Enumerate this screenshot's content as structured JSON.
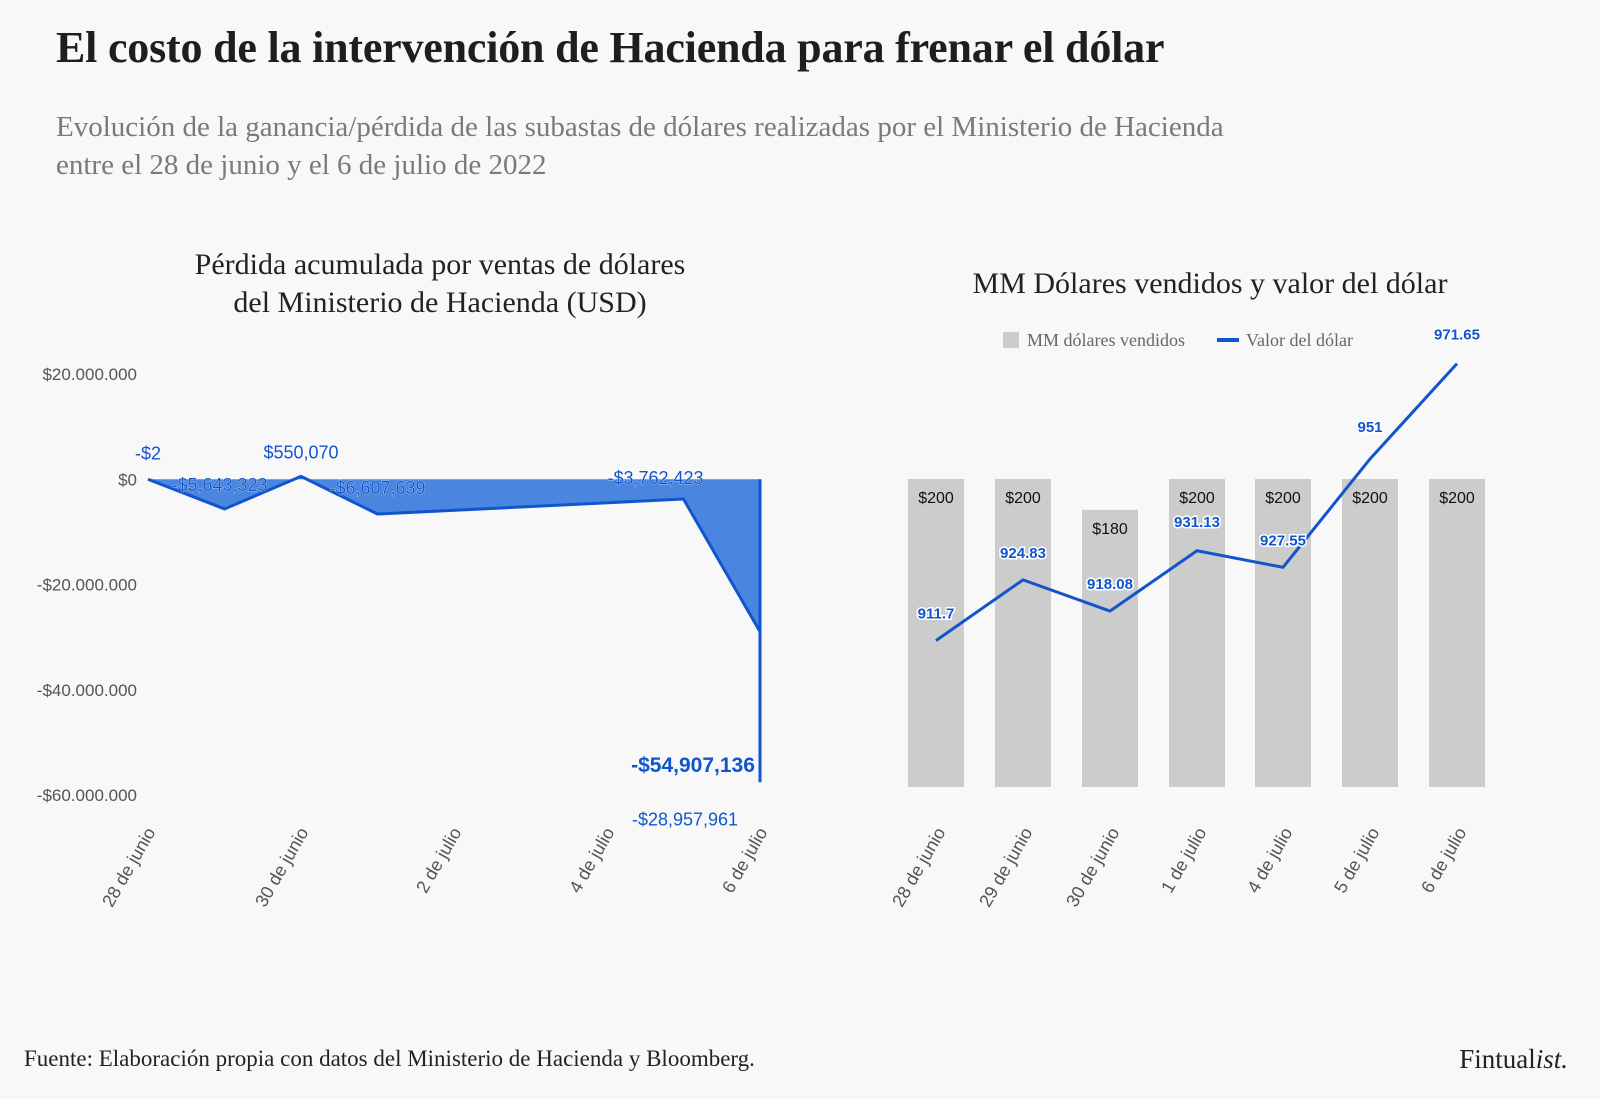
{
  "header": {
    "title": "El costo de la intervención de Hacienda para frenar el dólar",
    "subtitle_line1": "Evolución de la ganancia/pérdida de las subastas de dólares realizadas por el Ministerio de Hacienda",
    "subtitle_line2": "entre el 28 de junio y el 6 de julio de 2022"
  },
  "footer": {
    "source": "Fuente: Elaboración propia con datos del Ministerio de Hacienda y Bloomberg.",
    "brand_main": "Fintual",
    "brand_italic": "ist."
  },
  "colors": {
    "area_fill": "#4a86e0",
    "line": "#1155cc",
    "bar": "#cccccc",
    "axis_text": "#555555"
  },
  "chart_data": [
    {
      "type": "area",
      "title_line1": "Pérdida acumulada por ventas de dólares",
      "title_line2": "del Ministerio de Hacienda (USD)",
      "x_tick_labels": [
        "28 de junio",
        "30 de junio",
        "2 de julio",
        "4 de julio",
        "6 de julio"
      ],
      "ylim": [
        -60000000,
        20000000
      ],
      "y_ticks": [
        20000000,
        0,
        -20000000,
        -40000000,
        -60000000
      ],
      "y_tick_labels": [
        "$20.000.000",
        "$0",
        "-$20.000.000",
        "-$40.000.000",
        "-$60.000.000"
      ],
      "series": [
        {
          "name": "Pérdida acumulada",
          "points": [
            {
              "date": "28 de junio",
              "day": 0,
              "value": -2,
              "label": "-$2"
            },
            {
              "date": "29 de junio",
              "day": 1,
              "value": -5643323,
              "label": "-$5,643,323"
            },
            {
              "date": "30 de junio",
              "day": 2,
              "value": 550070,
              "label": "$550,070"
            },
            {
              "date": "1 de julio",
              "day": 3,
              "value": -6607639,
              "label": "-$6,607,639"
            },
            {
              "date": "5 de julio",
              "day": 7,
              "value": -3762423,
              "label": "-$3,762,423"
            },
            {
              "date": "6 de julio",
              "day": 8,
              "value": -28957961,
              "label": "-$28,957,961"
            },
            {
              "date": "6 de julio",
              "day": 8,
              "value": -54907136,
              "label": "-$54,907,136"
            }
          ]
        }
      ]
    },
    {
      "type": "bar",
      "title": "MM Dólares vendidos y valor del dólar",
      "categories": [
        "28 de junio",
        "29 de junio",
        "30 de junio",
        "1 de julio",
        "4 de julio",
        "5 de julio",
        "6 de julio"
      ],
      "legend": [
        "MM dólares vendidos",
        "Valor del dólar"
      ],
      "series": [
        {
          "name": "MM dólares vendidos",
          "type": "bar",
          "values": [
            200,
            200,
            180,
            200,
            200,
            200,
            200
          ],
          "labels": [
            "$200",
            "$200",
            "$180",
            "$200",
            "$200",
            "$200",
            "$200"
          ],
          "ylim": [
            0,
            300
          ]
        },
        {
          "name": "Valor del dólar",
          "type": "line",
          "values": [
            911.7,
            924.83,
            918.08,
            931.13,
            927.55,
            951,
            971.65
          ],
          "labels": [
            "911.7",
            "924.83",
            "918.08",
            "931.13",
            "927.55",
            "951",
            "971.65"
          ],
          "ylim": [
            880,
            980
          ]
        }
      ]
    }
  ]
}
